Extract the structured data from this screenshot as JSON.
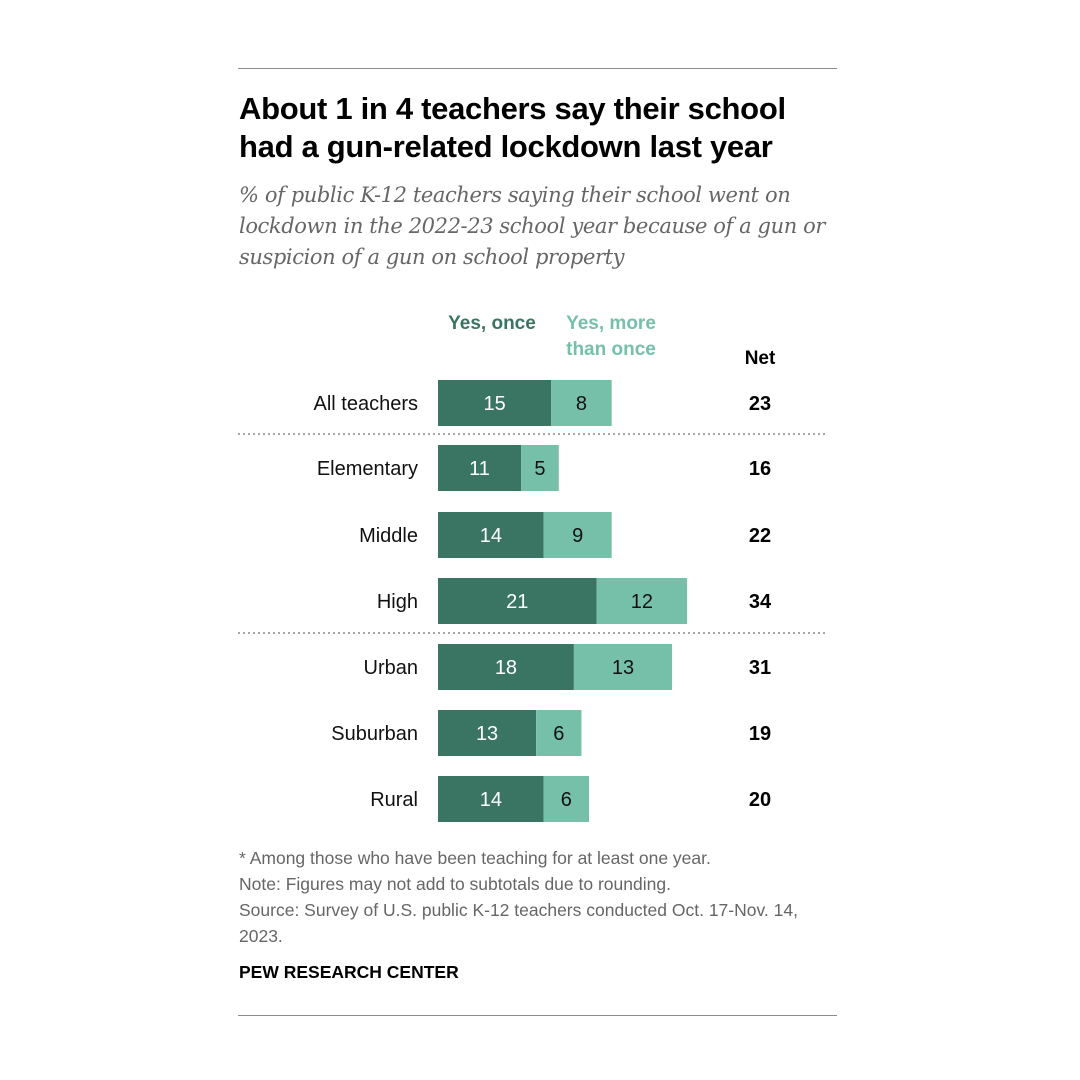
{
  "title": "About 1 in 4 teachers say their school had a gun-related lockdown last year",
  "subtitle": "% of public K-12 teachers saying their school went on lockdown in the 2022-23 school year because of a gun or suspicion of a gun on school property",
  "legend": {
    "once": "Yes, once",
    "more": "Yes, more than once"
  },
  "net_label": "Net",
  "notes": {
    "asterisk": "* Among those who have been teaching for at least one year.",
    "rounding": "Note: Figures may not add to subtotals due to rounding.",
    "source": "Source: Survey of U.S. public K-12 teachers conducted Oct. 17-Nov. 14, 2023."
  },
  "source_org": "PEW RESEARCH CENTER",
  "colors": {
    "once": "#3a7563",
    "more": "#76c0aa"
  },
  "chart_data": {
    "type": "bar",
    "orientation": "horizontal",
    "stacked": true,
    "categories": [
      "All teachers",
      "Elementary",
      "Middle",
      "High",
      "Urban",
      "Suburban",
      "Rural"
    ],
    "series": [
      {
        "name": "Yes, once",
        "values": [
          15,
          11,
          14,
          21,
          18,
          13,
          14
        ]
      },
      {
        "name": "Yes, more than once",
        "values": [
          8,
          5,
          9,
          12,
          13,
          6,
          6
        ]
      }
    ],
    "net": [
      23,
      16,
      22,
      34,
      31,
      19,
      20
    ]
  }
}
